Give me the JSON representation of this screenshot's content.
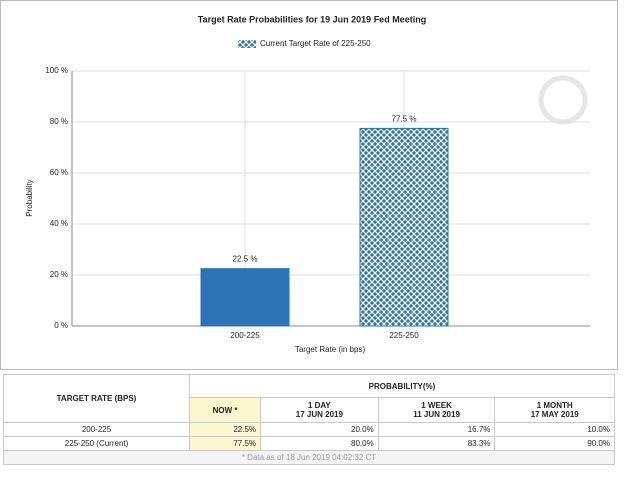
{
  "chart_data": {
    "type": "bar",
    "title": "Target Rate Probabilities for 19 Jun 2019 Fed Meeting",
    "legend": "Current Target Rate of 225-250",
    "x_label": "Target Rate (in bps)",
    "y_label": "Probability",
    "categories": [
      "200-225",
      "225-250"
    ],
    "values": [
      22.5,
      77.5
    ],
    "value_labels": [
      "22.5 %",
      "77.5 %"
    ],
    "color": "#2a74b5",
    "hatched": [
      false,
      true
    ],
    "ylim": [
      0,
      100
    ],
    "yticks": [
      {
        "value": 0,
        "label": "0 %"
      },
      {
        "value": 20,
        "label": "20 %"
      },
      {
        "value": 40,
        "label": "40 %"
      },
      {
        "value": 60,
        "label": "60 %"
      },
      {
        "value": 80,
        "label": "80 %"
      },
      {
        "value": 100,
        "label": "100 %"
      }
    ],
    "grid": true
  },
  "table": {
    "header": {
      "rate": "TARGET RATE (BPS)",
      "probability": "PROBABILITY(%)"
    },
    "columns": [
      {
        "label": "NOW *"
      },
      {
        "label": "1 DAY",
        "date": "17 JUN 2019"
      },
      {
        "label": "1 WEEK",
        "date": "11 JUN 2019"
      },
      {
        "label": "1 MONTH",
        "date": "17 MAY 2019"
      }
    ],
    "rows": [
      [
        "200-225",
        "22.5%",
        "20.0%",
        "16.7%",
        "10.0%"
      ],
      [
        "225-250 (Current)",
        "77.5%",
        "80.0%",
        "83.3%",
        "90.0%"
      ]
    ],
    "footnote": "* Data as of 18 Jun 2019 04:02:32 CT"
  }
}
